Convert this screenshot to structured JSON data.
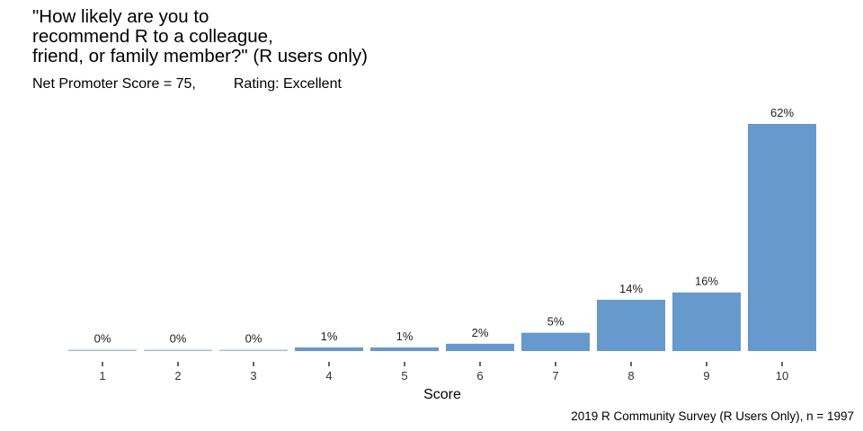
{
  "title": "\"How likely are you to\nrecommend R to a colleague,\nfriend, or family member?\" (R users only)",
  "subtitle": {
    "nps": "Net Promoter Score = 75,",
    "rating": "Rating: Excellent"
  },
  "caption": "2019 R Community Survey (R Users Only), n = 1997",
  "chart_data": {
    "type": "bar",
    "xlabel": "Score",
    "ylabel": "",
    "categories": [
      "1",
      "2",
      "3",
      "4",
      "5",
      "6",
      "7",
      "8",
      "9",
      "10"
    ],
    "values": [
      0,
      0,
      0,
      1,
      1,
      2,
      5,
      14,
      16,
      62
    ],
    "labels": [
      "0%",
      "0%",
      "0%",
      "1%",
      "1%",
      "2%",
      "5%",
      "14%",
      "16%",
      "62%"
    ],
    "ylim": [
      0,
      62
    ],
    "grid": false,
    "bar_color": "#6699cc"
  }
}
